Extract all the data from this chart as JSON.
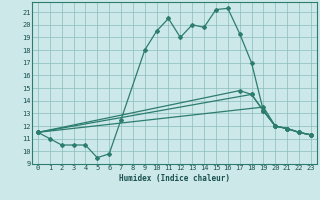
{
  "xlabel": "Humidex (Indice chaleur)",
  "bg_color": "#cce8e8",
  "line_color": "#2d7d6e",
  "xlim": [
    -0.5,
    23.5
  ],
  "ylim": [
    9,
    21.8
  ],
  "yticks": [
    9,
    10,
    11,
    12,
    13,
    14,
    15,
    16,
    17,
    18,
    19,
    20,
    21
  ],
  "xticks": [
    0,
    1,
    2,
    3,
    4,
    5,
    6,
    7,
    8,
    9,
    10,
    11,
    12,
    13,
    14,
    15,
    16,
    17,
    18,
    19,
    20,
    21,
    22,
    23
  ],
  "main_x": [
    0,
    1,
    2,
    3,
    4,
    5,
    6,
    7,
    9,
    10,
    11,
    12,
    13,
    14,
    15,
    16,
    17,
    18,
    19,
    20,
    21,
    22,
    23
  ],
  "main_y": [
    11.5,
    11.0,
    10.5,
    10.5,
    10.5,
    9.5,
    9.8,
    12.5,
    18.0,
    19.5,
    20.5,
    19.0,
    20.0,
    19.8,
    21.2,
    21.3,
    19.3,
    17.0,
    13.2,
    12.0,
    11.8,
    11.5,
    11.3
  ],
  "line1_x": [
    0,
    19,
    20,
    21,
    22,
    23
  ],
  "line1_y": [
    11.5,
    13.5,
    12.0,
    11.8,
    11.5,
    11.3
  ],
  "line2_x": [
    0,
    18,
    19,
    20,
    21,
    22,
    23
  ],
  "line2_y": [
    11.5,
    14.5,
    13.2,
    12.0,
    11.8,
    11.5,
    11.3
  ],
  "line3_x": [
    0,
    17,
    18,
    19,
    20,
    21,
    22,
    23
  ],
  "line3_y": [
    11.5,
    14.8,
    14.5,
    13.2,
    12.0,
    11.8,
    11.5,
    11.3
  ]
}
